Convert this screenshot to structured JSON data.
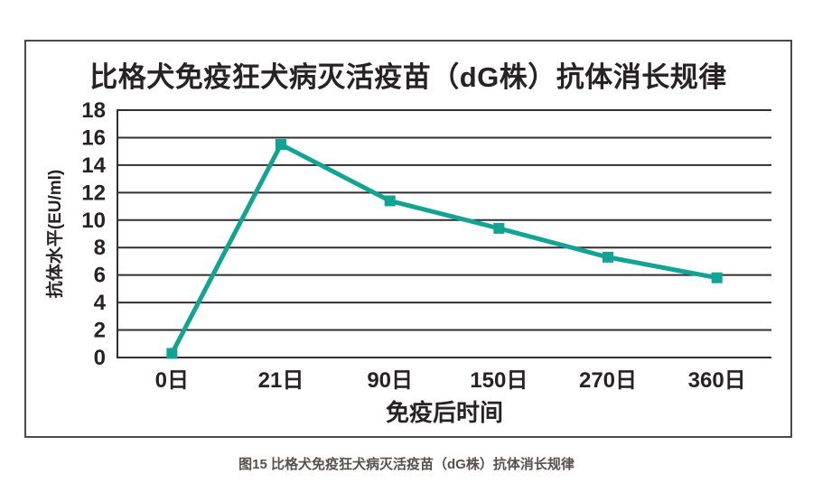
{
  "figure": {
    "title": "比格犬免疫狂犬病灭活疫苗（dG株）抗体消长规律",
    "caption": "图15 比格犬免疫狂犬病灭活疫苗（dG株）抗体消长规律"
  },
  "chart_data": {
    "type": "line",
    "title": "比格犬免疫狂犬病灭活疫苗（dG株）抗体消长规律",
    "categories": [
      "0日",
      "21日",
      "90日",
      "150日",
      "270日",
      "360日"
    ],
    "series": [
      {
        "name": "抗体水平",
        "values": [
          0.3,
          15.5,
          11.4,
          9.4,
          7.3,
          5.8
        ]
      }
    ],
    "xlabel": "免疫后时间",
    "ylabel": "抗体水平(EU/ml)",
    "ylim": [
      0,
      18
    ],
    "ytick_step": 2,
    "grid": "horizontal",
    "legend": "none",
    "marker": "square",
    "line_color": "#12a392",
    "grid_color": "#332e2f",
    "text_color": "#272324",
    "frame_color": "#4a4a4a",
    "caption_color": "#55514f"
  }
}
